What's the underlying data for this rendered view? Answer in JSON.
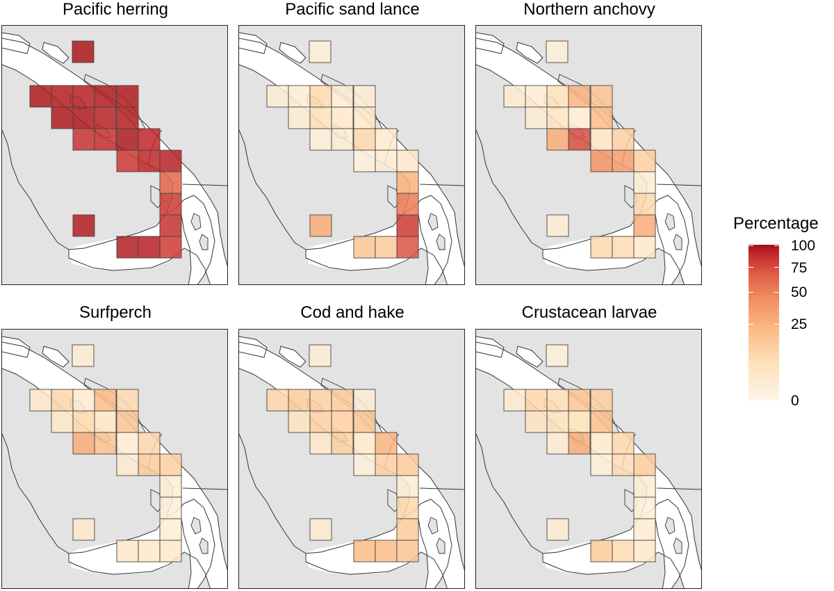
{
  "chart_data": {
    "type": "heatmap",
    "legend": {
      "title": "Percentage",
      "ticks": [
        "100",
        "75",
        "50",
        "25",
        "0"
      ],
      "tick_values": [
        100,
        75,
        50,
        25,
        0
      ],
      "placement": "right",
      "color_stops": [
        "#fff5e8",
        "#fde0b9",
        "#fcbc86",
        "#f18f5f",
        "#de5a45",
        "#c2282b",
        "#9e0f14"
      ]
    },
    "cells": [
      "A",
      "B1",
      "B2",
      "B3",
      "B4",
      "B5",
      "C1",
      "C2",
      "C3",
      "C4",
      "C5",
      "C6",
      "D1",
      "D2",
      "D3",
      "D4",
      "D5",
      "E1",
      "F1",
      "F2",
      "F3",
      "F4",
      "F5",
      "F6"
    ],
    "panels": [
      {
        "title": "Pacific herring",
        "values": [
          92,
          88,
          86,
          84,
          83,
          87,
          88,
          90,
          88,
          86,
          78,
          72,
          92,
          82,
          78,
          70,
          68,
          85,
          85,
          83,
          68,
          72,
          68,
          52
        ]
      },
      {
        "title": "Pacific sand lance",
        "values": [
          4,
          5,
          6,
          15,
          8,
          5,
          5,
          12,
          6,
          8,
          7,
          5,
          16,
          8,
          6,
          4,
          3,
          30,
          22,
          20,
          58,
          68,
          45,
          28
        ]
      },
      {
        "title": "Northern anchovy",
        "values": [
          4,
          6,
          6,
          12,
          6,
          22,
          5,
          10,
          28,
          25,
          18,
          60,
          10,
          18,
          35,
          30,
          38,
          5,
          15,
          14,
          8,
          30,
          15,
          5
        ]
      },
      {
        "title": "Surfperch",
        "values": [
          5,
          8,
          16,
          6,
          10,
          14,
          8,
          15,
          25,
          22,
          16,
          22,
          6,
          18,
          20,
          30,
          6,
          8,
          8,
          8,
          8,
          5,
          4,
          5
        ]
      },
      {
        "title": "Cod and hake",
        "values": [
          5,
          15,
          20,
          18,
          18,
          6,
          10,
          18,
          20,
          22,
          28,
          18,
          8,
          20,
          18,
          8,
          4,
          6,
          25,
          25,
          22,
          20,
          15,
          5
        ]
      },
      {
        "title": "Crustacean larvae",
        "values": [
          4,
          6,
          16,
          14,
          12,
          18,
          10,
          12,
          22,
          24,
          16,
          30,
          8,
          20,
          14,
          6,
          4,
          6,
          20,
          14,
          8,
          6,
          4,
          5
        ]
      }
    ]
  }
}
